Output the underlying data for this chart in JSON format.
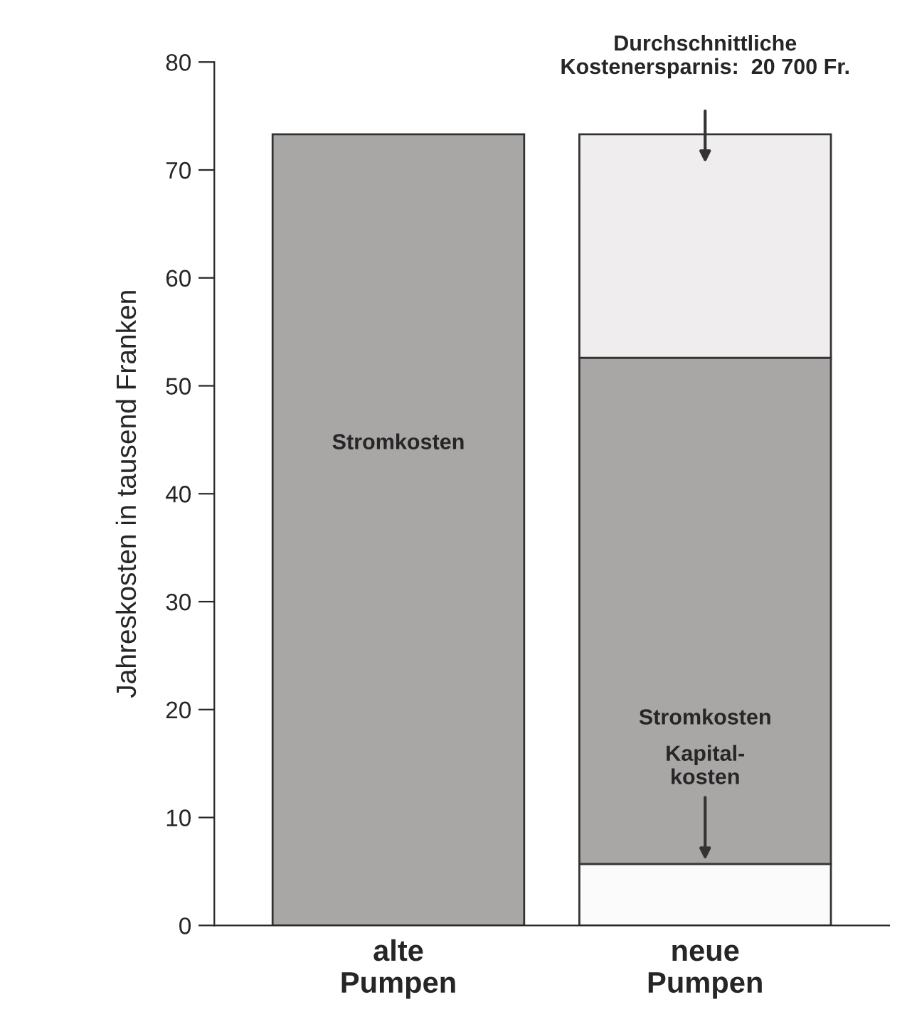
{
  "chart_data": {
    "type": "bar",
    "stacked": true,
    "ylabel": "Jahreskosten in tausend Franken",
    "categories": [
      "alte\nPumpen",
      "neue\nPumpen"
    ],
    "series": [
      {
        "name": "Kapital-\nkosten",
        "color": "#fbfbfb",
        "values": [
          0,
          5.7
        ]
      },
      {
        "name": "Stromkosten",
        "color": "#a9a6a6",
        "values": [
          73.3,
          46.9
        ]
      },
      {
        "color": "#efeded",
        "values": [
          0,
          20.7
        ]
      }
    ],
    "annotations": [
      "Durchschnittliche\nKostenersparnis:  20 700 Fr."
    ],
    "ylim": [
      0,
      80
    ],
    "yticks": [
      0,
      10,
      20,
      30,
      40,
      50,
      60,
      70,
      80
    ],
    "grid": false,
    "legend": false
  }
}
